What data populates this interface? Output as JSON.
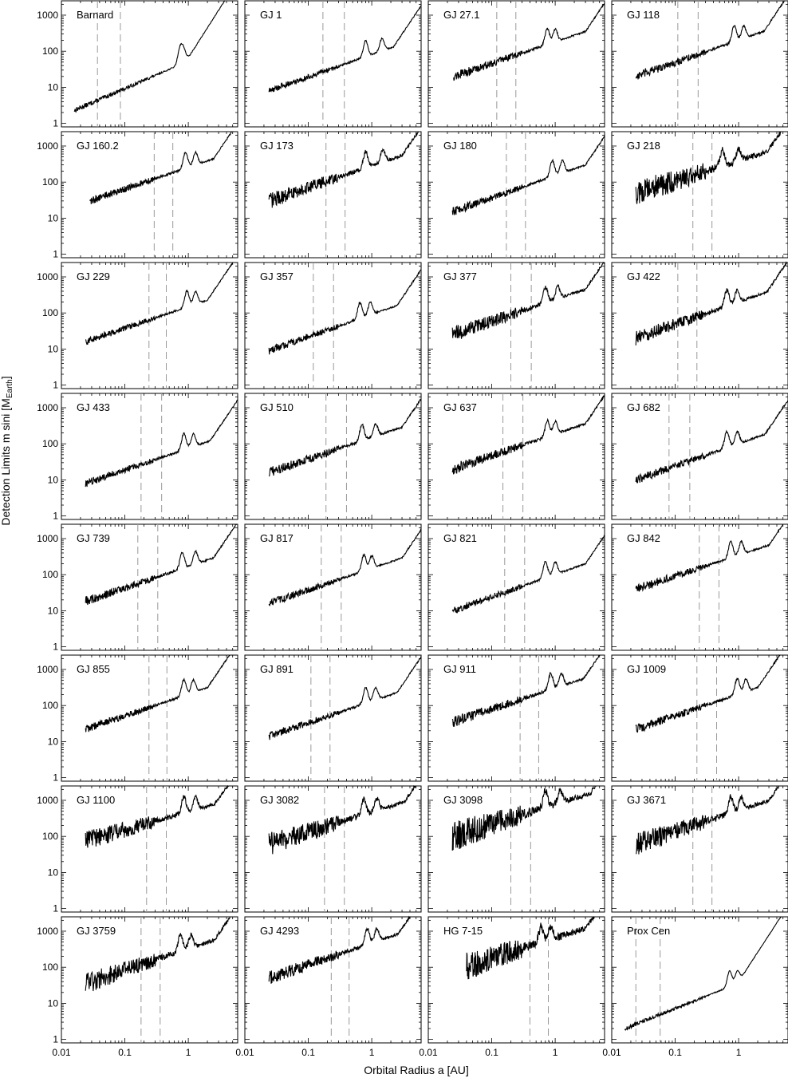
{
  "chart_data": {
    "type": "line",
    "layout": "small-multiples-grid",
    "grid": false,
    "xlabel": "Orbital Radius a [AU]",
    "ylabel": "Detection Limits m sini [M",
    "ylabel_sub": "Earth",
    "ylabel_close": "]",
    "xscale": "log",
    "yscale": "log",
    "xlim": [
      0.01,
      6
    ],
    "ylim": [
      0.8,
      2500
    ],
    "xtick_labels": [
      {
        "value": 0.01,
        "label": "0.01"
      },
      {
        "value": 0.1,
        "label": "0.1"
      },
      {
        "value": 1,
        "label": "1"
      }
    ],
    "ytick_labels": [
      {
        "value": 1,
        "label": "1"
      },
      {
        "value": 10,
        "label": "10"
      },
      {
        "value": 100,
        "label": "100"
      },
      {
        "value": 1000,
        "label": "1000"
      }
    ],
    "series_style": {
      "limit_curve": "#000000",
      "habitable_zone_lines": "#999999"
    },
    "panels": [
      {
        "name": "Barnard",
        "amin": 0.016,
        "c0": 2.3,
        "slope": 0.76,
        "noise": 0.14,
        "peaks": [
          0.74,
          0.85
        ],
        "tail": 0.9,
        "hz": [
          0.037,
          0.085
        ]
      },
      {
        "name": "GJ 1",
        "amin": 0.024,
        "c0": 8.0,
        "slope": 0.62,
        "noise": 0.18,
        "peaks": [
          0.8,
          1.45
        ],
        "tail": 2.2,
        "hz": [
          0.17,
          0.37
        ]
      },
      {
        "name": "GJ 27.1",
        "amin": 0.025,
        "c0": 20,
        "slope": 0.6,
        "noise": 0.25,
        "peaks": [
          0.75,
          1.0
        ],
        "tail": 3.0,
        "hz": [
          0.12,
          0.24
        ]
      },
      {
        "name": "GJ 118",
        "amin": 0.024,
        "c0": 20,
        "slope": 0.62,
        "noise": 0.25,
        "peaks": [
          0.85,
          1.2
        ],
        "tail": 2.5,
        "hz": [
          0.11,
          0.23
        ]
      },
      {
        "name": "GJ 160.2",
        "amin": 0.028,
        "c0": 30,
        "slope": 0.6,
        "noise": 0.22,
        "peaks": [
          0.9,
          1.3
        ],
        "tail": 2.5,
        "hz": [
          0.29,
          0.57
        ]
      },
      {
        "name": "GJ 173",
        "amin": 0.024,
        "c0": 30,
        "slope": 0.6,
        "noise": 0.45,
        "peaks": [
          0.8,
          1.5
        ],
        "tail": 3.0,
        "hz": [
          0.19,
          0.38
        ]
      },
      {
        "name": "GJ 180",
        "amin": 0.024,
        "c0": 15,
        "slope": 0.62,
        "noise": 0.25,
        "peaks": [
          0.9,
          1.3
        ],
        "tail": 3.0,
        "hz": [
          0.17,
          0.34
        ]
      },
      {
        "name": "GJ 218",
        "amin": 0.024,
        "c0": 50,
        "slope": 0.55,
        "noise": 0.75,
        "peaks": [
          0.55,
          1.0
        ],
        "tail": 2.8,
        "hz": [
          0.19,
          0.38
        ]
      },
      {
        "name": "GJ 229",
        "amin": 0.024,
        "c0": 16,
        "slope": 0.6,
        "noise": 0.2,
        "peaks": [
          0.95,
          1.3
        ],
        "tail": 2.0,
        "hz": [
          0.24,
          0.45
        ]
      },
      {
        "name": "GJ 357",
        "amin": 0.024,
        "c0": 9,
        "slope": 0.62,
        "noise": 0.22,
        "peaks": [
          0.65,
          0.95
        ],
        "tail": 2.5,
        "hz": [
          0.12,
          0.25
        ]
      },
      {
        "name": "GJ 377",
        "amin": 0.024,
        "c0": 25,
        "slope": 0.6,
        "noise": 0.45,
        "peaks": [
          0.7,
          1.1
        ],
        "tail": 3.0,
        "hz": [
          0.2,
          0.42
        ]
      },
      {
        "name": "GJ 422",
        "amin": 0.024,
        "c0": 20,
        "slope": 0.62,
        "noise": 0.4,
        "peaks": [
          0.65,
          0.95
        ],
        "tail": 2.8,
        "hz": [
          0.11,
          0.22
        ]
      },
      {
        "name": "GJ 433",
        "amin": 0.024,
        "c0": 8,
        "slope": 0.6,
        "noise": 0.22,
        "peaks": [
          0.85,
          1.2
        ],
        "tail": 2.2,
        "hz": [
          0.18,
          0.38
        ]
      },
      {
        "name": "GJ 510",
        "amin": 0.024,
        "c0": 16,
        "slope": 0.6,
        "noise": 0.28,
        "peaks": [
          0.7,
          1.15
        ],
        "tail": 3.0,
        "hz": [
          0.19,
          0.4
        ]
      },
      {
        "name": "GJ 637",
        "amin": 0.024,
        "c0": 20,
        "slope": 0.6,
        "noise": 0.32,
        "peaks": [
          0.75,
          1.0
        ],
        "tail": 3.0,
        "hz": [
          0.15,
          0.31
        ]
      },
      {
        "name": "GJ 682",
        "amin": 0.024,
        "c0": 10,
        "slope": 0.62,
        "noise": 0.26,
        "peaks": [
          0.65,
          0.95
        ],
        "tail": 2.6,
        "hz": [
          0.08,
          0.17
        ]
      },
      {
        "name": "GJ 739",
        "amin": 0.024,
        "c0": 18,
        "slope": 0.6,
        "noise": 0.26,
        "peaks": [
          0.8,
          1.3
        ],
        "tail": 2.5,
        "hz": [
          0.16,
          0.33
        ]
      },
      {
        "name": "GJ 817",
        "amin": 0.024,
        "c0": 16,
        "slope": 0.6,
        "noise": 0.22,
        "peaks": [
          0.75,
          1.0
        ],
        "tail": 3.0,
        "hz": [
          0.16,
          0.33
        ]
      },
      {
        "name": "GJ 821",
        "amin": 0.024,
        "c0": 10,
        "slope": 0.62,
        "noise": 0.22,
        "peaks": [
          0.7,
          1.0
        ],
        "tail": 3.0,
        "hz": [
          0.16,
          0.33
        ]
      },
      {
        "name": "GJ 842",
        "amin": 0.024,
        "c0": 40,
        "slope": 0.58,
        "noise": 0.25,
        "peaks": [
          0.75,
          1.1
        ],
        "tail": 3.0,
        "hz": [
          0.24,
          0.49
        ]
      },
      {
        "name": "GJ 855",
        "amin": 0.024,
        "c0": 22,
        "slope": 0.6,
        "noise": 0.22,
        "peaks": [
          0.85,
          1.2
        ],
        "tail": 2.0,
        "hz": [
          0.24,
          0.46
        ]
      },
      {
        "name": "GJ 891",
        "amin": 0.024,
        "c0": 14,
        "slope": 0.6,
        "noise": 0.22,
        "peaks": [
          0.8,
          1.15
        ],
        "tail": 2.5,
        "hz": [
          0.11,
          0.22
        ]
      },
      {
        "name": "GJ 911",
        "amin": 0.024,
        "c0": 35,
        "slope": 0.58,
        "noise": 0.32,
        "peaks": [
          0.85,
          1.25
        ],
        "tail": 2.8,
        "hz": [
          0.28,
          0.55
        ]
      },
      {
        "name": "GJ 1009",
        "amin": 0.024,
        "c0": 22,
        "slope": 0.6,
        "noise": 0.26,
        "peaks": [
          0.95,
          1.3
        ],
        "tail": 2.0,
        "hz": [
          0.22,
          0.45
        ]
      },
      {
        "name": "GJ 1100",
        "amin": 0.024,
        "c0": 75,
        "slope": 0.5,
        "noise": 0.55,
        "peaks": [
          0.85,
          1.3
        ],
        "tail": 2.6,
        "hz": [
          0.22,
          0.45
        ]
      },
      {
        "name": "GJ 3082",
        "amin": 0.024,
        "c0": 60,
        "slope": 0.55,
        "noise": 0.65,
        "peaks": [
          0.75,
          1.2
        ],
        "tail": 3.2,
        "hz": [
          0.18,
          0.37
        ]
      },
      {
        "name": "GJ 3098",
        "amin": 0.024,
        "c0": 100,
        "slope": 0.55,
        "noise": 0.85,
        "peaks": [
          0.7,
          1.2
        ],
        "tail": 3.6,
        "hz": [
          0.2,
          0.41
        ]
      },
      {
        "name": "GJ 3671",
        "amin": 0.024,
        "c0": 60,
        "slope": 0.58,
        "noise": 0.65,
        "peaks": [
          0.75,
          1.1
        ],
        "tail": 3.0,
        "hz": [
          0.19,
          0.38
        ]
      },
      {
        "name": "GJ 3759",
        "amin": 0.024,
        "c0": 35,
        "slope": 0.6,
        "noise": 0.6,
        "peaks": [
          0.75,
          1.1
        ],
        "tail": 2.6,
        "hz": [
          0.18,
          0.36
        ]
      },
      {
        "name": "GJ 4293",
        "amin": 0.024,
        "c0": 50,
        "slope": 0.6,
        "noise": 0.38,
        "peaks": [
          0.85,
          1.2
        ],
        "tail": 2.6,
        "hz": [
          0.23,
          0.44
        ]
      },
      {
        "name": "HG 7-15",
        "amin": 0.04,
        "c0": 110,
        "slope": 0.55,
        "noise": 0.8,
        "peaks": [
          0.6,
          0.85
        ],
        "tail": 3.0,
        "hz": [
          0.4,
          0.78
        ]
      },
      {
        "name": "Prox Cen",
        "amin": 0.016,
        "c0": 2.0,
        "slope": 0.7,
        "noise": 0.12,
        "peaks": [
          0.72,
          0.95
        ],
        "tail": 0.95,
        "hz": [
          0.024,
          0.058
        ]
      }
    ]
  }
}
